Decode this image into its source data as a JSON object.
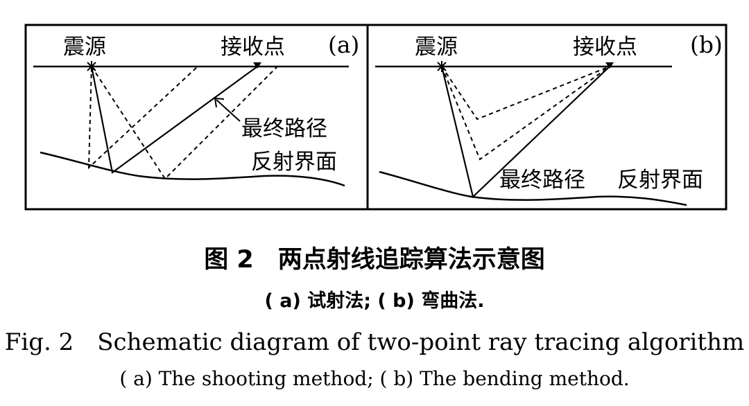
{
  "panels": [
    {
      "tag": "(a)",
      "source_label": "震源",
      "receiver_label": "接收点",
      "final_path_label": "最终路径",
      "reflector_label": "反射界面"
    },
    {
      "tag": "(b)",
      "source_label": "震源",
      "receiver_label": "接收点",
      "final_path_label": "最终路径",
      "reflector_label": "反射界面"
    }
  ],
  "caption": {
    "cn_title": "图 2　两点射线追踪算法示意图",
    "cn_subtitle": "( a) 试射法; ( b) 弯曲法.",
    "en_title": "Fig. 2　Schematic diagram of two-point ray tracing algorithm",
    "en_subtitle": "( a) The shooting method; ( b) The bending method."
  }
}
